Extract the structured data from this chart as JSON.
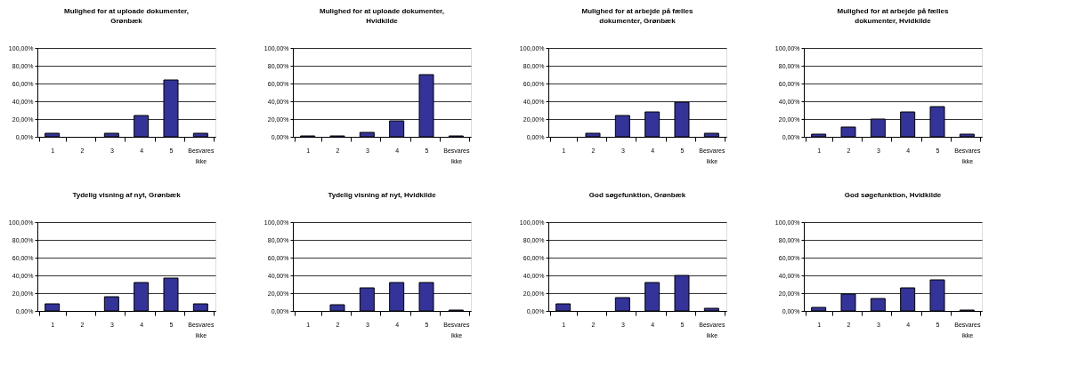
{
  "chart_data": [
    {
      "type": "bar",
      "title": "Mulighed for at uploade dokumenter,\nGrønbæk",
      "categories": [
        "1",
        "2",
        "3",
        "4",
        "5",
        "Besvares ikke"
      ],
      "series": [
        {
          "color": "#333399",
          "values": [
            4,
            0,
            4,
            24,
            64,
            4
          ]
        }
      ],
      "ylim": [
        0,
        100
      ],
      "yticks": [
        {
          "value": 0,
          "label": "0,00%"
        },
        {
          "value": 20,
          "label": "20,00%"
        },
        {
          "value": 40,
          "label": "40,00%"
        },
        {
          "value": 60,
          "label": "60,00%"
        },
        {
          "value": 80,
          "label": "80,00%"
        },
        {
          "value": 100,
          "label": "100,00%"
        }
      ],
      "grid": "y"
    },
    {
      "type": "bar",
      "title": "Mulighed for at uploade dokumenter,\nHvidkilde",
      "categories": [
        "1",
        "2",
        "3",
        "4",
        "5",
        "Besvares ikke"
      ],
      "series": [
        {
          "color": "#333399",
          "values": [
            1,
            1,
            5,
            18,
            70,
            1
          ]
        }
      ],
      "ylim": [
        0,
        100
      ],
      "yticks": [
        {
          "value": 0,
          "label": "0,00%"
        },
        {
          "value": 20,
          "label": "20,00%"
        },
        {
          "value": 40,
          "label": "40,00%"
        },
        {
          "value": 60,
          "label": "60,00%"
        },
        {
          "value": 80,
          "label": "80,00%"
        },
        {
          "value": 100,
          "label": "100,00%"
        }
      ],
      "grid": "y"
    },
    {
      "type": "bar",
      "title": "Mulighed for at arbejde på fælles\ndokumenter, Grønbæk",
      "categories": [
        "1",
        "2",
        "3",
        "4",
        "5",
        "Besvares ikke"
      ],
      "series": [
        {
          "color": "#333399",
          "values": [
            0,
            4,
            24,
            28,
            39,
            4
          ]
        }
      ],
      "ylim": [
        0,
        100
      ],
      "yticks": [
        {
          "value": 0,
          "label": "0,00%"
        },
        {
          "value": 20,
          "label": "20,00%"
        },
        {
          "value": 40,
          "label": "40,00%"
        },
        {
          "value": 60,
          "label": "60,00%"
        },
        {
          "value": 80,
          "label": "80,00%"
        },
        {
          "value": 100,
          "label": "100,00%"
        }
      ],
      "grid": "y"
    },
    {
      "type": "bar",
      "title": "Mulighed for at arbejde på fælles\ndokumenter, Hvidkilde",
      "categories": [
        "1",
        "2",
        "3",
        "4",
        "5",
        "Besvares ikke"
      ],
      "series": [
        {
          "color": "#333399",
          "values": [
            3,
            11,
            20,
            28,
            34,
            3
          ]
        }
      ],
      "ylim": [
        0,
        100
      ],
      "yticks": [
        {
          "value": 0,
          "label": "0,00%"
        },
        {
          "value": 20,
          "label": "20,00%"
        },
        {
          "value": 40,
          "label": "40,00%"
        },
        {
          "value": 60,
          "label": "60,00%"
        },
        {
          "value": 80,
          "label": "80,00%"
        },
        {
          "value": 100,
          "label": "100,00%"
        }
      ],
      "grid": "y"
    },
    {
      "type": "bar",
      "title": "Tydelig visning af nyt, Grønbæk",
      "categories": [
        "1",
        "2",
        "3",
        "4",
        "5",
        "Besvares ikke"
      ],
      "series": [
        {
          "color": "#333399",
          "values": [
            8,
            0,
            16,
            32,
            37,
            8
          ]
        }
      ],
      "ylim": [
        0,
        100
      ],
      "yticks": [
        {
          "value": 0,
          "label": "0,00%"
        },
        {
          "value": 20,
          "label": "20,00%"
        },
        {
          "value": 40,
          "label": "40,00%"
        },
        {
          "value": 60,
          "label": "60,00%"
        },
        {
          "value": 80,
          "label": "80,00%"
        },
        {
          "value": 100,
          "label": "100,00%"
        }
      ],
      "grid": "y"
    },
    {
      "type": "bar",
      "title": "Tydelig visning af nyt, Hvidkilde",
      "categories": [
        "1",
        "2",
        "3",
        "4",
        "5",
        "Besvares ikke"
      ],
      "series": [
        {
          "color": "#333399",
          "values": [
            0,
            7,
            26,
            32,
            32,
            1
          ]
        }
      ],
      "ylim": [
        0,
        100
      ],
      "yticks": [
        {
          "value": 0,
          "label": "0,00%"
        },
        {
          "value": 20,
          "label": "20,00%"
        },
        {
          "value": 40,
          "label": "40,00%"
        },
        {
          "value": 60,
          "label": "60,00%"
        },
        {
          "value": 80,
          "label": "80,00%"
        },
        {
          "value": 100,
          "label": "100,00%"
        }
      ],
      "grid": "y"
    },
    {
      "type": "bar",
      "title": "God søgefunktion, Grønbæk",
      "categories": [
        "1",
        "2",
        "3",
        "4",
        "5",
        "Besvares ikke"
      ],
      "series": [
        {
          "color": "#333399",
          "values": [
            8,
            0,
            15,
            32,
            40,
            3
          ]
        }
      ],
      "ylim": [
        0,
        100
      ],
      "yticks": [
        {
          "value": 0,
          "label": "0,00%"
        },
        {
          "value": 20,
          "label": "20,00%"
        },
        {
          "value": 40,
          "label": "40,00%"
        },
        {
          "value": 60,
          "label": "60,00%"
        },
        {
          "value": 80,
          "label": "80,00%"
        },
        {
          "value": 100,
          "label": "100,00%"
        }
      ],
      "grid": "y"
    },
    {
      "type": "bar",
      "title": "God søgefunktion, Hvidkilde",
      "categories": [
        "1",
        "2",
        "3",
        "4",
        "5",
        "Besvares ikke"
      ],
      "series": [
        {
          "color": "#333399",
          "values": [
            4,
            19,
            14,
            26,
            35,
            1
          ]
        }
      ],
      "ylim": [
        0,
        100
      ],
      "yticks": [
        {
          "value": 0,
          "label": "0,00%"
        },
        {
          "value": 20,
          "label": "20,00%"
        },
        {
          "value": 40,
          "label": "40,00%"
        },
        {
          "value": 60,
          "label": "60,00%"
        },
        {
          "value": 80,
          "label": "80,00%"
        },
        {
          "value": 100,
          "label": "100,00%"
        }
      ],
      "grid": "y"
    }
  ]
}
